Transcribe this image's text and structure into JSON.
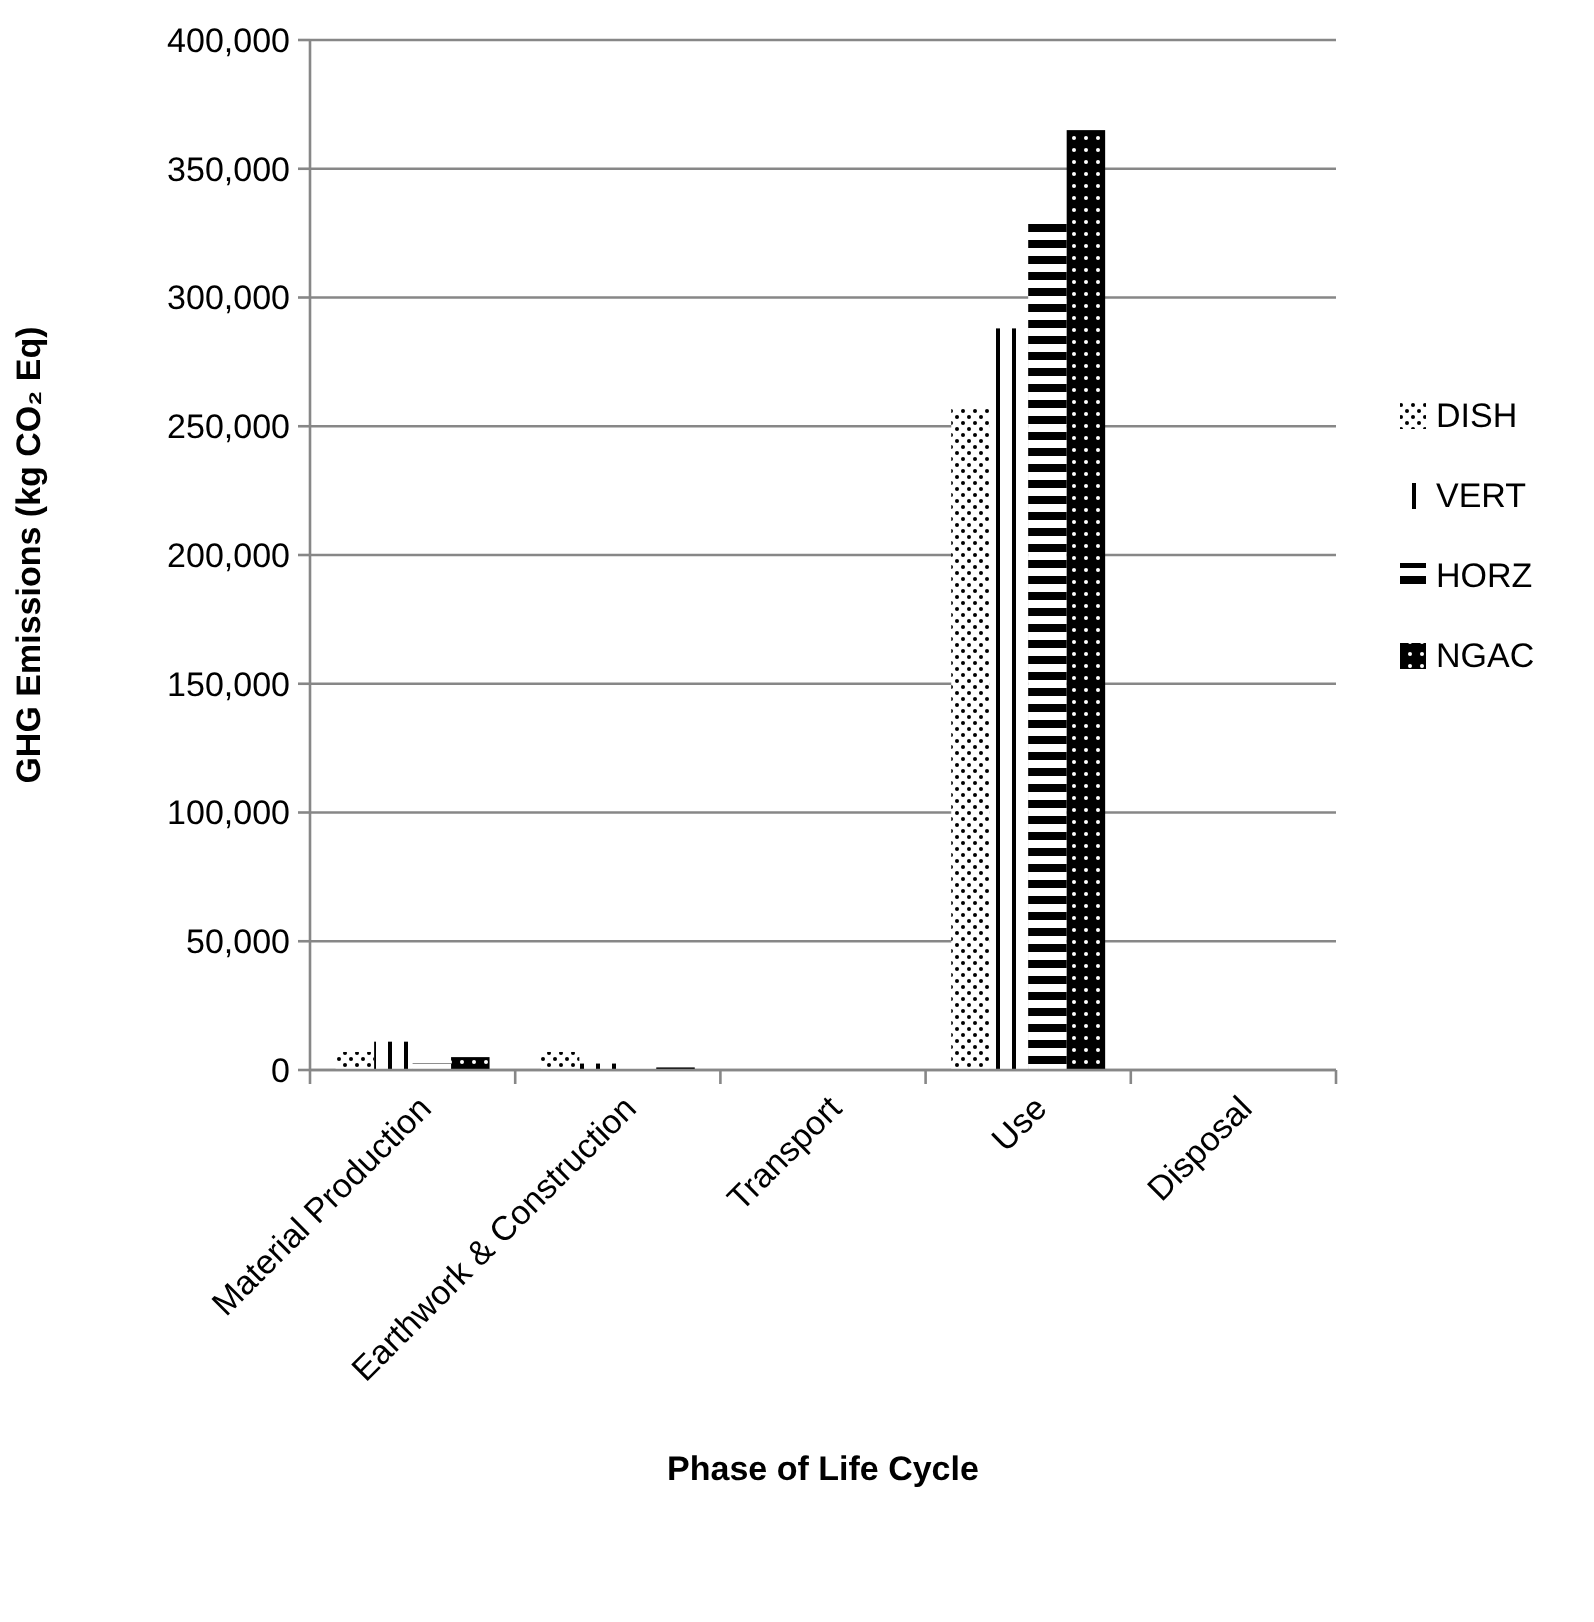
{
  "chart_data": {
    "type": "bar",
    "xlabel": "Phase of Life Cycle",
    "ylabel": "GHG Emissions (kg CO₂ Eq)",
    "categories": [
      "Material Production",
      "Earthwork & Construction",
      "Transport",
      "Use",
      "Disposal"
    ],
    "series": [
      {
        "name": "DISH",
        "color": "#000000",
        "values": [
          7000,
          7000,
          null,
          257000,
          0
        ]
      },
      {
        "name": "VERT",
        "color": "#000000",
        "values": [
          11000,
          2500,
          null,
          288000,
          0
        ]
      },
      {
        "name": "HORZ",
        "color": "#000000",
        "values": [
          2500,
          1000,
          null,
          329000,
          0
        ]
      },
      {
        "name": "NGAC",
        "color": "#000000",
        "values": [
          5000,
          1000,
          null,
          365000,
          0
        ]
      }
    ],
    "ylim": [
      0,
      400000
    ],
    "yticks": [
      {
        "value": 0,
        "label": "0"
      },
      {
        "value": 50000,
        "label": "50,000"
      },
      {
        "value": 100000,
        "label": "100,000"
      },
      {
        "value": 150000,
        "label": "150,000"
      },
      {
        "value": 200000,
        "label": "200,000"
      },
      {
        "value": 250000,
        "label": "250,000"
      },
      {
        "value": 300000,
        "label": "300,000"
      },
      {
        "value": 350000,
        "label": "350,000"
      },
      {
        "value": 400000,
        "label": "400,000"
      }
    ],
    "grid": "y",
    "legend": "right"
  }
}
